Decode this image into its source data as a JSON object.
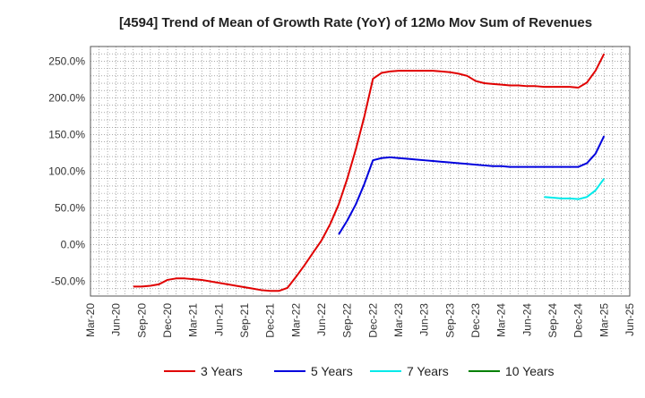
{
  "chart_data": {
    "type": "line",
    "title": "[4594]  Trend of Mean of Growth Rate (YoY) of 12Mo Mov Sum of Revenues",
    "xlabel": "",
    "ylabel": "",
    "ylim": [
      -70,
      270
    ],
    "yticks": [
      -50,
      0,
      50,
      100,
      150,
      200,
      250
    ],
    "ytick_labels": [
      "-50.0%",
      "0.0%",
      "50.0%",
      "100.0%",
      "150.0%",
      "200.0%",
      "250.0%"
    ],
    "x_start": "2020-03",
    "x_end": "2025-06",
    "xtick_labels": [
      "Mar-20",
      "Jun-20",
      "Sep-20",
      "Dec-20",
      "Mar-21",
      "Jun-21",
      "Sep-21",
      "Dec-21",
      "Mar-22",
      "Jun-22",
      "Sep-22",
      "Dec-22",
      "Mar-23",
      "Jun-23",
      "Sep-23",
      "Dec-23",
      "Mar-24",
      "Jun-24",
      "Sep-24",
      "Dec-24",
      "Mar-25",
      "Jun-25"
    ],
    "grid": true,
    "legend_position": "bottom",
    "series": [
      {
        "name": "3 Years",
        "color": "#e00000",
        "points": [
          [
            "2020-08",
            -57
          ],
          [
            "2020-09",
            -57
          ],
          [
            "2020-10",
            -56
          ],
          [
            "2020-11",
            -54
          ],
          [
            "2020-12",
            -48
          ],
          [
            "2021-01",
            -46
          ],
          [
            "2021-02",
            -46
          ],
          [
            "2021-03",
            -47
          ],
          [
            "2021-04",
            -48
          ],
          [
            "2021-05",
            -50
          ],
          [
            "2021-06",
            -52
          ],
          [
            "2021-07",
            -54
          ],
          [
            "2021-08",
            -56
          ],
          [
            "2021-09",
            -58
          ],
          [
            "2021-10",
            -60
          ],
          [
            "2021-11",
            -62
          ],
          [
            "2021-12",
            -63
          ],
          [
            "2022-01",
            -63
          ],
          [
            "2022-02",
            -59
          ],
          [
            "2022-03",
            -44
          ],
          [
            "2022-04",
            -28
          ],
          [
            "2022-05",
            -11
          ],
          [
            "2022-06",
            6
          ],
          [
            "2022-07",
            28
          ],
          [
            "2022-08",
            55
          ],
          [
            "2022-09",
            90
          ],
          [
            "2022-10",
            130
          ],
          [
            "2022-11",
            175
          ],
          [
            "2022-12",
            226
          ],
          [
            "2023-01",
            234
          ],
          [
            "2023-02",
            236
          ],
          [
            "2023-03",
            237
          ],
          [
            "2023-04",
            237
          ],
          [
            "2023-05",
            237
          ],
          [
            "2023-06",
            237
          ],
          [
            "2023-07",
            237
          ],
          [
            "2023-08",
            236
          ],
          [
            "2023-09",
            235
          ],
          [
            "2023-10",
            233
          ],
          [
            "2023-11",
            230
          ],
          [
            "2023-12",
            223
          ],
          [
            "2024-01",
            220
          ],
          [
            "2024-02",
            219
          ],
          [
            "2024-03",
            218
          ],
          [
            "2024-04",
            217
          ],
          [
            "2024-05",
            217
          ],
          [
            "2024-06",
            216
          ],
          [
            "2024-07",
            216
          ],
          [
            "2024-08",
            215
          ],
          [
            "2024-09",
            215
          ],
          [
            "2024-10",
            215
          ],
          [
            "2024-11",
            215
          ],
          [
            "2024-12",
            214
          ],
          [
            "2025-01",
            221
          ],
          [
            "2025-02",
            237
          ],
          [
            "2025-03",
            260
          ]
        ]
      },
      {
        "name": "5 Years",
        "color": "#0000dd",
        "points": [
          [
            "2022-08",
            14
          ],
          [
            "2022-09",
            33
          ],
          [
            "2022-10",
            55
          ],
          [
            "2022-11",
            83
          ],
          [
            "2022-12",
            115
          ],
          [
            "2023-01",
            118
          ],
          [
            "2023-02",
            119
          ],
          [
            "2023-03",
            118
          ],
          [
            "2023-04",
            117
          ],
          [
            "2023-05",
            116
          ],
          [
            "2023-06",
            115
          ],
          [
            "2023-07",
            114
          ],
          [
            "2023-08",
            113
          ],
          [
            "2023-09",
            112
          ],
          [
            "2023-10",
            111
          ],
          [
            "2023-11",
            110
          ],
          [
            "2023-12",
            109
          ],
          [
            "2024-01",
            108
          ],
          [
            "2024-02",
            107
          ],
          [
            "2024-03",
            107
          ],
          [
            "2024-04",
            106
          ],
          [
            "2024-05",
            106
          ],
          [
            "2024-06",
            106
          ],
          [
            "2024-07",
            106
          ],
          [
            "2024-08",
            106
          ],
          [
            "2024-09",
            106
          ],
          [
            "2024-10",
            106
          ],
          [
            "2024-11",
            106
          ],
          [
            "2024-12",
            106
          ],
          [
            "2025-01",
            111
          ],
          [
            "2025-02",
            124
          ],
          [
            "2025-03",
            148
          ]
        ]
      },
      {
        "name": "7 Years",
        "color": "#00eaea",
        "points": [
          [
            "2024-08",
            65
          ],
          [
            "2024-09",
            64
          ],
          [
            "2024-10",
            63
          ],
          [
            "2024-11",
            63
          ],
          [
            "2024-12",
            62
          ],
          [
            "2025-01",
            65
          ],
          [
            "2025-02",
            74
          ],
          [
            "2025-03",
            90
          ]
        ]
      },
      {
        "name": "10 Years",
        "color": "#008000",
        "points": []
      }
    ]
  }
}
